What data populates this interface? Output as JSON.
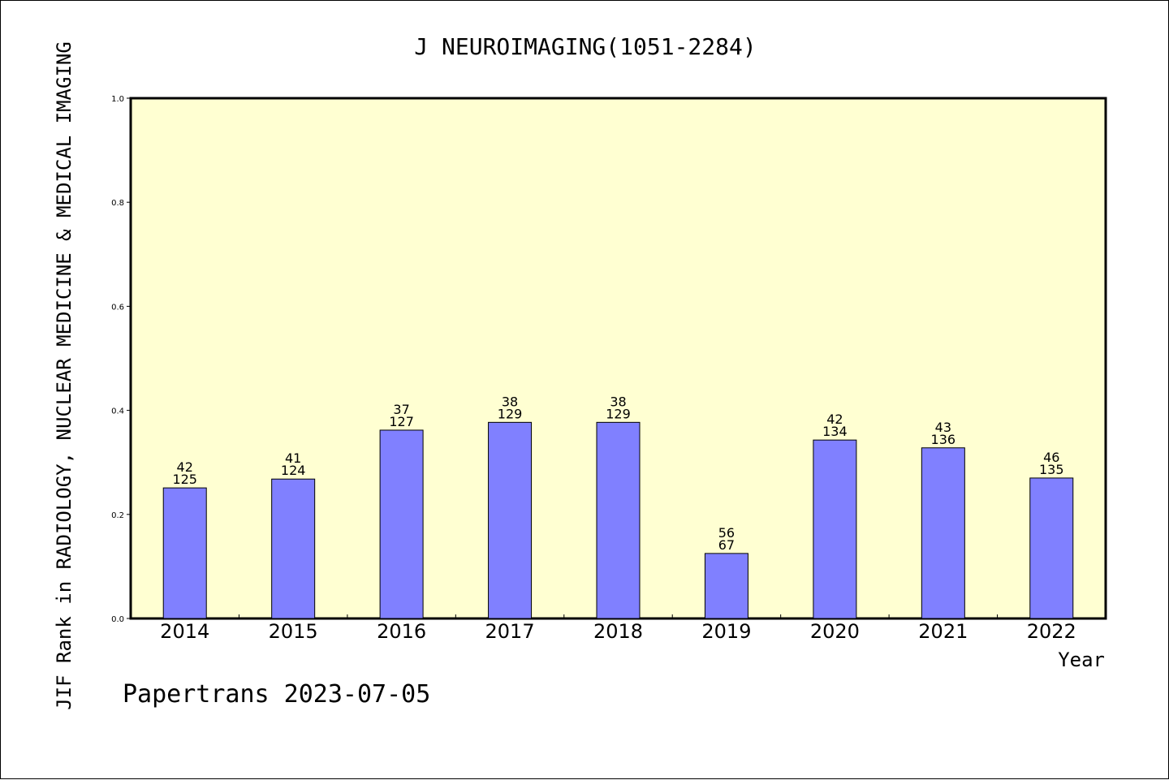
{
  "chart_data": {
    "type": "bar",
    "title": "J NEUROIMAGING(1051-2284)",
    "xlabel": "Year",
    "ylabel": "JIF Rank in RADIOLOGY, NUCLEAR MEDICINE & MEDICAL IMAGING",
    "ylim": [
      0,
      1.0
    ],
    "yticks": [
      "0.0",
      "0.2",
      "0.4",
      "0.6",
      "0.8",
      "1.0"
    ],
    "ytick_values": [
      0,
      0.2,
      0.4,
      0.6,
      0.8,
      1.0
    ],
    "grid": false,
    "categories": [
      "2014",
      "2015",
      "2016",
      "2017",
      "2018",
      "2019",
      "2020",
      "2021",
      "2022"
    ],
    "values": [
      0.251,
      0.268,
      0.362,
      0.377,
      0.377,
      0.125,
      0.343,
      0.328,
      0.27
    ],
    "label_top": [
      "42",
      "41",
      "37",
      "38",
      "38",
      "56",
      "42",
      "43",
      "46"
    ],
    "label_bottom": [
      "125",
      "124",
      "127",
      "129",
      "129",
      "67",
      "134",
      "136",
      "135"
    ],
    "colors": {
      "plot_bg": "#ffffd2",
      "bar": "#8080ff",
      "axis": "#000000"
    }
  },
  "footer": "Papertrans 2023-07-05"
}
